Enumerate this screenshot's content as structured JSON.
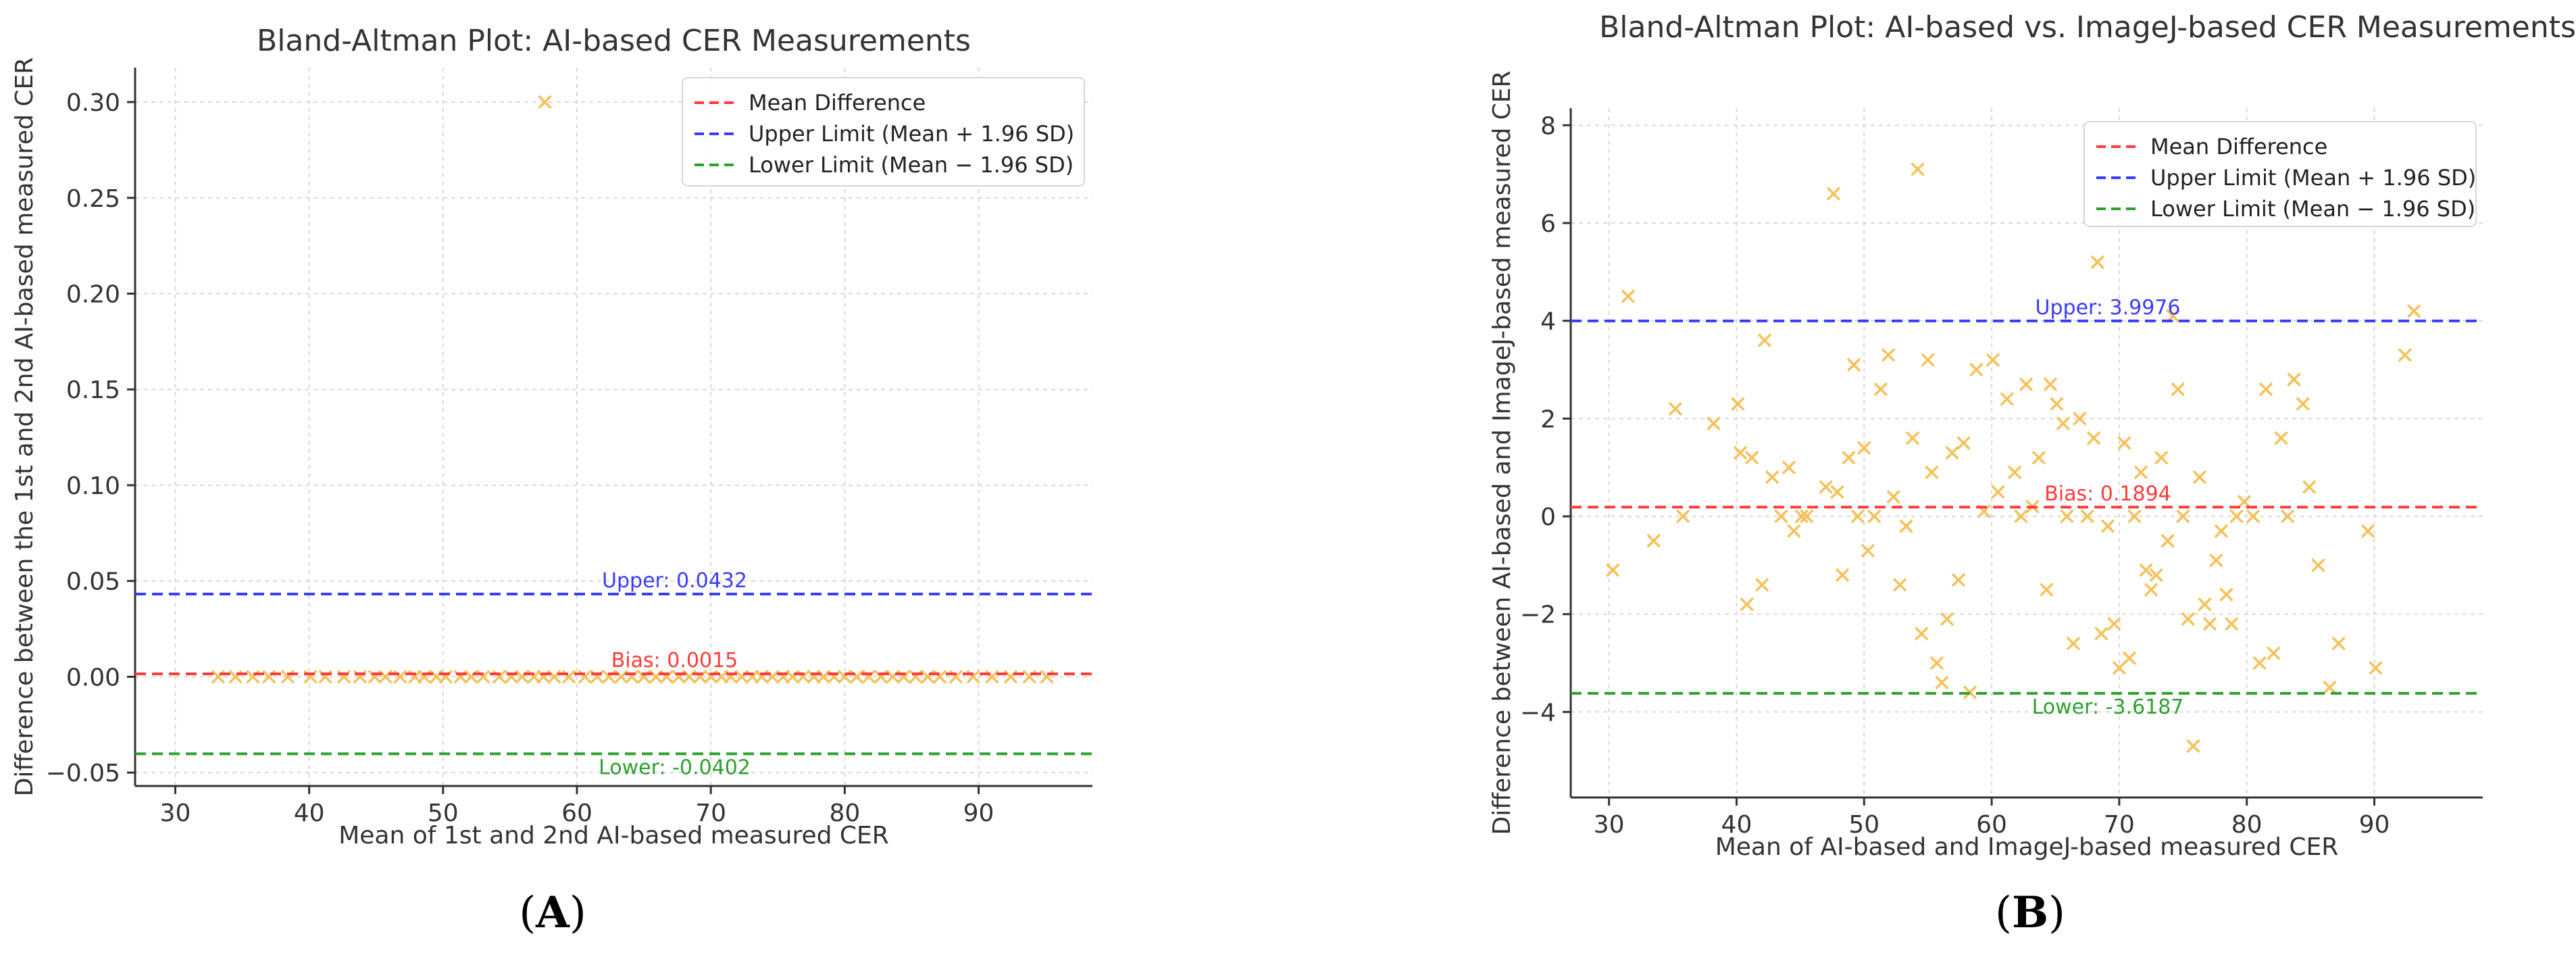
{
  "chart_data": [
    {
      "type": "scatter",
      "panel_label": "(A)",
      "panel_letter": "A",
      "title": "Bland-Altman Plot: AI-based CER Measurements",
      "xlabel": "Mean of 1st and 2nd AI-based measured CER",
      "ylabel": "Difference between the 1st and 2nd AI-based measured CER",
      "xlim": [
        27,
        98.5
      ],
      "ylim": [
        -0.057,
        0.318
      ],
      "xticks": [
        30,
        40,
        50,
        60,
        70,
        80,
        90
      ],
      "yticks": [
        -0.05,
        0.0,
        0.05,
        0.1,
        0.15,
        0.2,
        0.25,
        0.3
      ],
      "ytick_labels": [
        "−0.05",
        "0.00",
        "0.05",
        "0.10",
        "0.15",
        "0.20",
        "0.25",
        "0.30"
      ],
      "grid": true,
      "legend_position": "top-right",
      "marker": "x",
      "marker_color": "#f5c15a",
      "colors": {
        "mean": "#ff3b3b",
        "upper": "#3b3bff",
        "lower": "#2ca02c"
      },
      "legend": [
        "Mean Difference",
        "Upper Limit (Mean + 1.96 SD)",
        "Lower Limit (Mean − 1.96 SD)"
      ],
      "lines": {
        "mean": {
          "value": 0.0015,
          "label": "Bias: 0.0015"
        },
        "upper": {
          "value": 0.0432,
          "label": "Upper: 0.0432"
        },
        "lower": {
          "value": -0.0402,
          "label": "Lower: -0.0402"
        }
      },
      "points": {
        "x": [
          33.2,
          34.5,
          35.8,
          37.0,
          38.4,
          40.1,
          41.2,
          42.6,
          43.8,
          44.9,
          45.7,
          46.8,
          47.9,
          48.6,
          49.5,
          50.2,
          51.3,
          52.1,
          53.0,
          54.2,
          55.1,
          55.9,
          56.8,
          57.5,
          58.3,
          59.4,
          60.6,
          61.5,
          62.4,
          63.3,
          64.1,
          65.0,
          65.9,
          66.7,
          67.6,
          68.4,
          69.2,
          70.0,
          70.8,
          71.5,
          72.3,
          73.1,
          73.8,
          74.6,
          75.4,
          76.1,
          76.9,
          77.7,
          78.4,
          79.2,
          80.0,
          80.9,
          81.8,
          82.7,
          83.6,
          84.4,
          85.3,
          86.2,
          87.1,
          88.3,
          89.6,
          91.0,
          92.4,
          93.8,
          95.1,
          57.6
        ],
        "y": [
          0,
          0,
          0,
          0,
          0,
          0,
          0,
          0,
          0,
          0,
          0,
          0,
          0,
          0,
          0,
          0,
          0,
          0,
          0,
          0,
          0,
          0,
          0,
          0,
          0,
          0,
          0,
          0,
          0,
          0,
          0,
          0,
          0,
          0,
          0,
          0,
          0,
          0,
          0,
          0,
          0,
          0,
          0,
          0,
          0,
          0,
          0,
          0,
          0,
          0,
          0,
          0,
          0,
          0,
          0,
          0,
          0,
          0,
          0,
          0,
          0,
          0,
          0,
          0,
          0,
          0.3
        ]
      }
    },
    {
      "type": "scatter",
      "panel_label": "(B)",
      "panel_letter": "B",
      "title": "Bland-Altman Plot: AI-based vs. ImageJ-based CER Measurements",
      "xlabel": "Mean of AI-based and ImageJ-based measured CER",
      "ylabel": "Difference between AI-based and ImageJ-based measured CER",
      "xlim": [
        27,
        98.5
      ],
      "ylim": [
        -5.75,
        8.35
      ],
      "xticks": [
        30,
        40,
        50,
        60,
        70,
        80,
        90
      ],
      "yticks": [
        -4,
        -2,
        0,
        2,
        4,
        6,
        8
      ],
      "ytick_labels": [
        "−4",
        "−2",
        "0",
        "2",
        "4",
        "6",
        "8"
      ],
      "grid": true,
      "legend_position": "top-right",
      "marker": "x",
      "marker_color": "#f5c15a",
      "colors": {
        "mean": "#ff3b3b",
        "upper": "#3b3bff",
        "lower": "#2ca02c"
      },
      "legend": [
        "Mean Difference",
        "Upper Limit (Mean + 1.96 SD)",
        "Lower Limit (Mean − 1.96 SD)"
      ],
      "lines": {
        "mean": {
          "value": 0.1894,
          "label": "Bias: 0.1894"
        },
        "upper": {
          "value": 3.9976,
          "label": "Upper: 3.9976"
        },
        "lower": {
          "value": -3.6187,
          "label": "Lower: -3.6187"
        }
      },
      "points": {
        "x": [
          30.3,
          31.5,
          33.5,
          35.2,
          35.8,
          38.2,
          40.1,
          40.3,
          40.8,
          41.2,
          42.0,
          42.2,
          42.8,
          43.5,
          44.1,
          44.5,
          45.1,
          45.5,
          47.0,
          47.6,
          47.9,
          48.3,
          48.8,
          49.2,
          49.5,
          50.0,
          50.3,
          50.8,
          51.3,
          51.9,
          52.3,
          52.8,
          53.3,
          53.8,
          54.2,
          54.5,
          55.0,
          55.3,
          55.7,
          56.1,
          56.5,
          56.9,
          57.4,
          57.8,
          58.3,
          58.8,
          59.4,
          60.1,
          60.5,
          61.2,
          61.8,
          62.3,
          62.7,
          63.2,
          63.7,
          64.3,
          64.6,
          65.1,
          65.6,
          65.9,
          66.4,
          66.9,
          67.5,
          68.0,
          68.3,
          68.6,
          69.1,
          69.6,
          70.0,
          70.4,
          70.8,
          71.2,
          71.7,
          72.1,
          72.5,
          72.9,
          73.3,
          73.8,
          74.2,
          74.6,
          75.0,
          75.4,
          75.8,
          76.3,
          76.7,
          77.1,
          77.6,
          78.0,
          78.4,
          78.8,
          79.2,
          79.8,
          80.5,
          81.0,
          81.5,
          82.1,
          82.7,
          83.2,
          83.7,
          84.4,
          84.9,
          85.6,
          86.5,
          87.2,
          89.5,
          90.1,
          92.4,
          93.1
        ],
        "y": [
          -1.1,
          4.5,
          -0.5,
          2.2,
          0.0,
          1.9,
          2.3,
          1.3,
          -1.8,
          1.2,
          -1.4,
          3.6,
          0.8,
          0.0,
          1.0,
          -0.3,
          0.0,
          0.0,
          0.6,
          6.6,
          0.5,
          -1.2,
          1.2,
          3.1,
          0.0,
          1.4,
          -0.7,
          0.0,
          2.6,
          3.3,
          0.4,
          -1.4,
          -0.2,
          1.6,
          7.1,
          -2.4,
          3.2,
          0.9,
          -3.0,
          -3.4,
          -2.1,
          1.3,
          -1.3,
          1.5,
          -3.6,
          3.0,
          0.1,
          3.2,
          0.5,
          2.4,
          0.9,
          0.0,
          2.7,
          0.2,
          1.2,
          -1.5,
          2.7,
          2.3,
          1.9,
          0.0,
          -2.6,
          2.0,
          0.0,
          1.6,
          5.2,
          -2.4,
          -0.2,
          -2.2,
          -3.1,
          1.5,
          -2.9,
          0.0,
          0.9,
          -1.1,
          -1.5,
          -1.2,
          1.2,
          -0.5,
          4.1,
          2.6,
          0.0,
          -2.1,
          -4.7,
          0.8,
          -1.8,
          -2.2,
          -0.9,
          -0.3,
          -1.6,
          -2.2,
          0.0,
          0.3,
          0.0,
          -3.0,
          2.6,
          -2.8,
          1.6,
          0.0,
          2.8,
          2.3,
          0.6,
          -1.0,
          -3.5,
          -2.6,
          -0.3,
          -3.1,
          3.3,
          4.2
        ]
      }
    }
  ]
}
